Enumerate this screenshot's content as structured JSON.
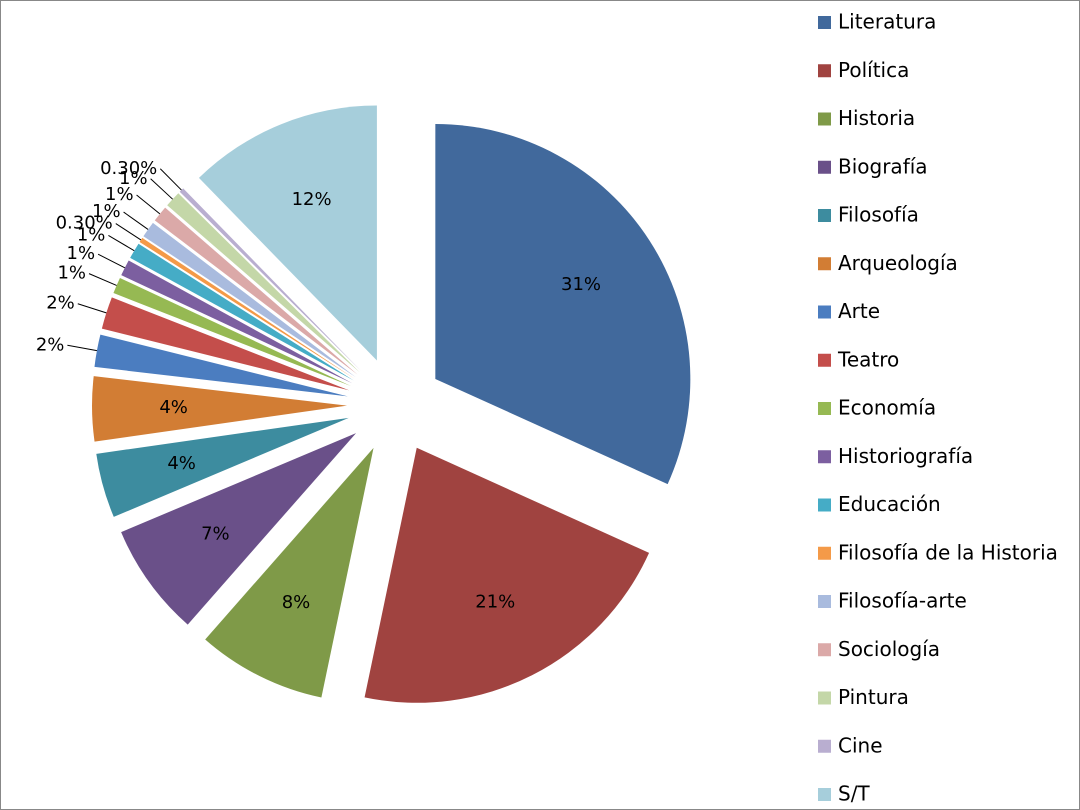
{
  "chart_data": {
    "type": "pie",
    "categories": [
      "Literatura",
      "Política",
      "Historia",
      "Biografía",
      "Filosofía",
      "Arqueología",
      "Arte",
      "Teatro",
      "Economía",
      "Historiografía",
      "Educación",
      "Filosofía de la Historia",
      "Filosofía-arte",
      "Sociología",
      "Pintura",
      "Cine",
      "S/T"
    ],
    "values": [
      31,
      21,
      8,
      7,
      4,
      4,
      2,
      2,
      1,
      1,
      1,
      0.3,
      1,
      1,
      1,
      0.3,
      12
    ],
    "value_labels": [
      "31%",
      "21%",
      "8%",
      "7%",
      "4%",
      "4%",
      "2%",
      "2%",
      "1%",
      "1%",
      "1%",
      "0.30%",
      "1%",
      "1%",
      "1%",
      "0.30%",
      "12%"
    ],
    "colors": [
      "#41699c",
      "#a04340",
      "#7f9a48",
      "#6a5089",
      "#3d8c9f",
      "#d27d34",
      "#4b7dc0",
      "#c44e4b",
      "#96b953",
      "#7c5fa0",
      "#45acc6",
      "#f49a48",
      "#a9bbde",
      "#dba9a8",
      "#c4d7a8",
      "#b9aed0",
      "#a6cedb"
    ],
    "legend": "right"
  }
}
